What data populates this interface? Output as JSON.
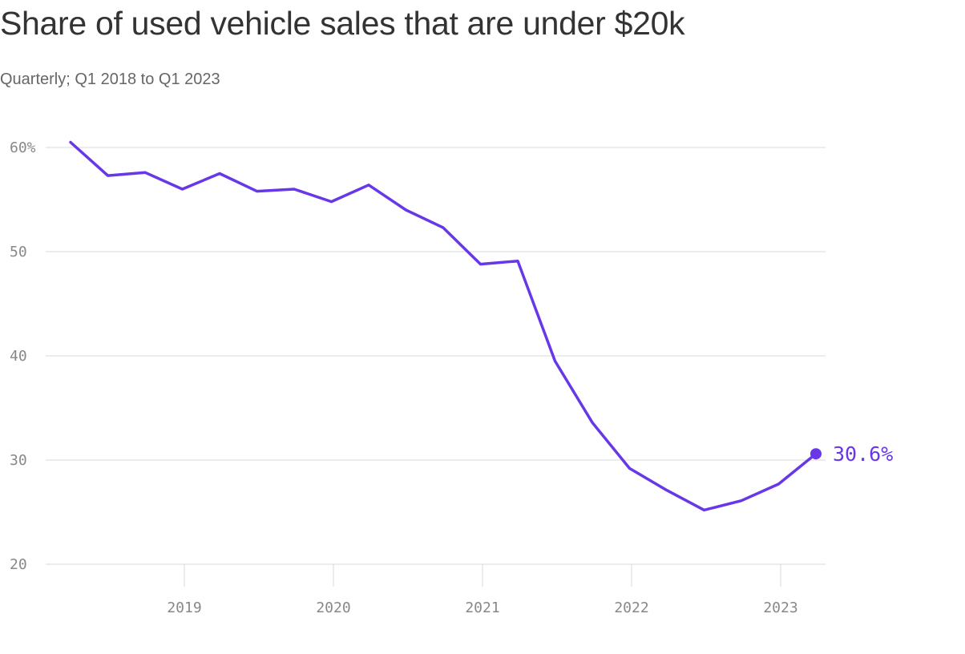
{
  "header": {
    "title": "Share of used vehicle sales that are under $20k",
    "subtitle": "Quarterly; Q1 2018 to Q1 2023"
  },
  "colors": {
    "series": "#6737e8",
    "grid": "#d9d9d9",
    "tick_text": "#888888"
  },
  "chart_data": {
    "type": "line",
    "title": "Share of used vehicle sales that are under $20k",
    "subtitle": "Quarterly; Q1 2018 to Q1 2023",
    "xlabel": "",
    "ylabel": "",
    "x": [
      "Q1 2018",
      "Q2 2018",
      "Q3 2018",
      "Q4 2018",
      "Q1 2019",
      "Q2 2019",
      "Q3 2019",
      "Q4 2019",
      "Q1 2020",
      "Q2 2020",
      "Q3 2020",
      "Q4 2020",
      "Q1 2021",
      "Q2 2021",
      "Q3 2021",
      "Q4 2021",
      "Q1 2022",
      "Q2 2022",
      "Q3 2022",
      "Q4 2022",
      "Q1 2023"
    ],
    "series": [
      {
        "values": [
          60.5,
          57.3,
          57.6,
          56.0,
          57.5,
          55.8,
          56.0,
          54.8,
          56.4,
          54.0,
          52.3,
          48.8,
          49.1,
          39.5,
          33.6,
          29.2,
          27.1,
          25.2,
          26.1,
          27.7,
          30.6
        ]
      }
    ],
    "xlim": [
      "Q1 2018",
      "Q2 2023"
    ],
    "ylim": [
      20,
      62
    ],
    "y_ticks": [
      {
        "value": 60,
        "label": "60%"
      },
      {
        "value": 50,
        "label": "50"
      },
      {
        "value": 40,
        "label": "40"
      },
      {
        "value": 30,
        "label": "30"
      },
      {
        "value": 20,
        "label": "20"
      }
    ],
    "x_ticks": [
      {
        "value": "2019",
        "label": "2019"
      },
      {
        "value": "2020",
        "label": "2020"
      },
      {
        "value": "2021",
        "label": "2021"
      },
      {
        "value": "2022",
        "label": "2022"
      },
      {
        "value": "2023",
        "label": "2023"
      }
    ],
    "end_label": "30.6%",
    "grid": true,
    "legend": "none"
  }
}
